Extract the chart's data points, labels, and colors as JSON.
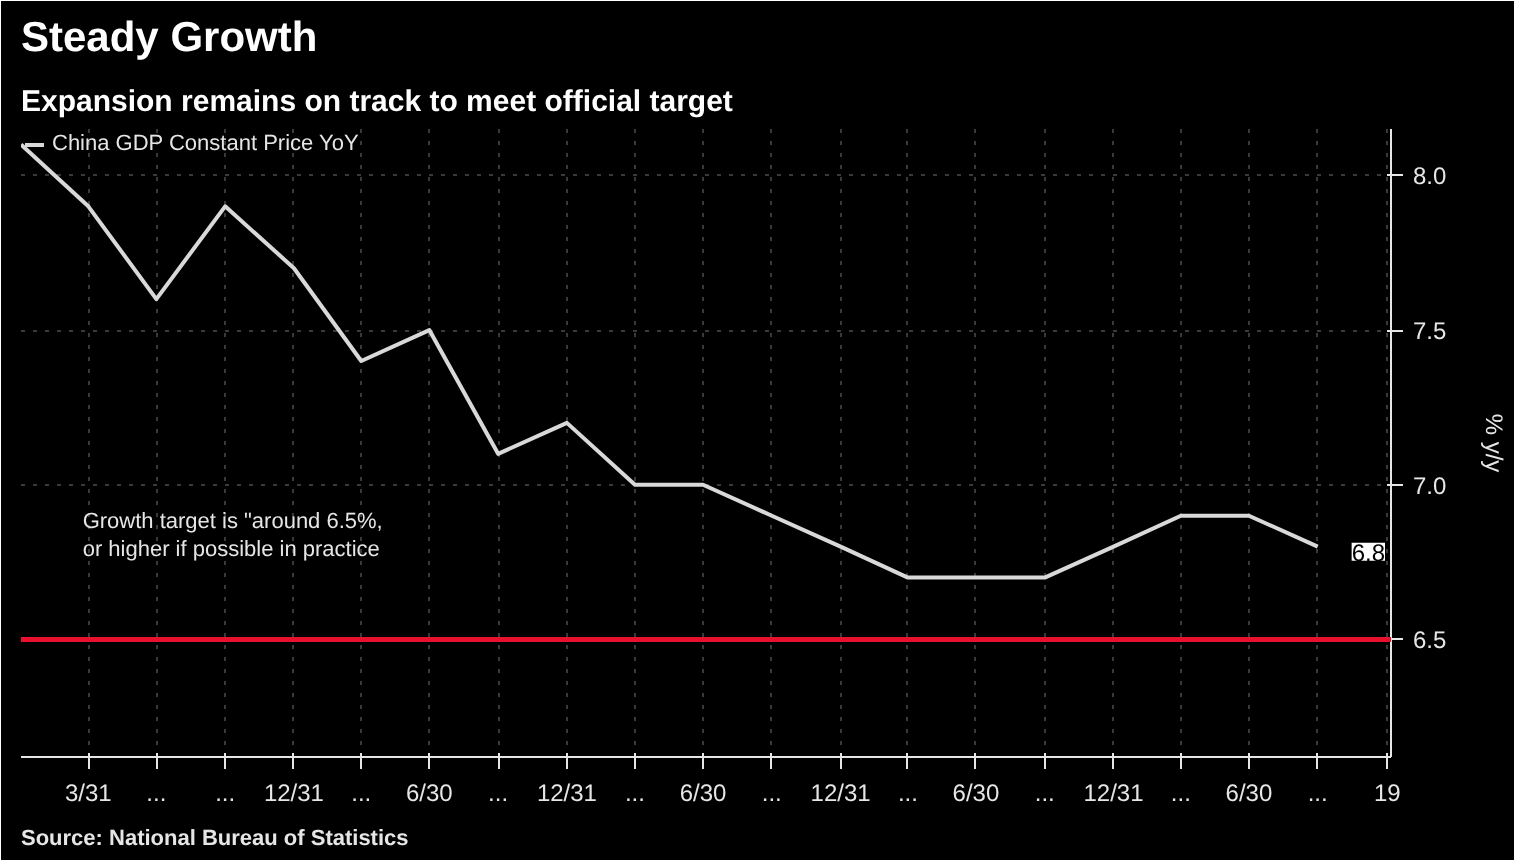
{
  "chart_data": {
    "type": "line",
    "title": "Steady Growth",
    "subtitle": "Expansion remains on track to meet official target",
    "ylabel": "% y/y",
    "x": [
      "2013-12-31",
      "2014-03-31",
      "2014-06-30",
      "2014-09-30",
      "2014-12-31",
      "2015-03-31",
      "2015-06-30",
      "2015-09-30",
      "2015-12-31",
      "2016-03-31",
      "2016-06-30",
      "2016-09-30",
      "2016-12-31",
      "2017-03-31",
      "2017-06-30",
      "2017-09-30",
      "2017-12-31",
      "2018-03-31",
      "2018-06-30",
      "2018-09-30"
    ],
    "series": [
      {
        "name": "China GDP Constant Price YoY",
        "color": "#d9d9d9",
        "values": [
          8.1,
          7.9,
          7.6,
          7.9,
          7.7,
          7.4,
          7.5,
          7.1,
          7.2,
          7.0,
          7.0,
          6.9,
          6.8,
          6.7,
          6.7,
          6.7,
          6.8,
          6.9,
          6.9,
          6.8
        ],
        "value_labels": [
          null,
          null,
          null,
          null,
          null,
          null,
          null,
          null,
          null,
          null,
          null,
          null,
          null,
          null,
          null,
          null,
          null,
          null,
          null,
          "6.8"
        ]
      }
    ],
    "xlim": [
      "2013-12-31",
      "2019-01-06"
    ],
    "ylim": [
      6.12,
      8.15
    ],
    "xticks": [
      {
        "value": "2014-03-31",
        "label": "3/31"
      },
      {
        "value": "2014-06-30",
        "label": "..."
      },
      {
        "value": "2014-09-30",
        "label": "..."
      },
      {
        "value": "2014-12-31",
        "label": "12/31"
      },
      {
        "value": "2015-03-31",
        "label": "..."
      },
      {
        "value": "2015-06-30",
        "label": "6/30"
      },
      {
        "value": "2015-09-30",
        "label": "..."
      },
      {
        "value": "2015-12-31",
        "label": "12/31"
      },
      {
        "value": "2016-03-31",
        "label": "..."
      },
      {
        "value": "2016-06-30",
        "label": "6/30"
      },
      {
        "value": "2016-09-30",
        "label": "..."
      },
      {
        "value": "2016-12-31",
        "label": "12/31"
      },
      {
        "value": "2017-03-31",
        "label": "..."
      },
      {
        "value": "2017-06-30",
        "label": "6/30"
      },
      {
        "value": "2017-09-30",
        "label": "..."
      },
      {
        "value": "2017-12-31",
        "label": "12/31"
      },
      {
        "value": "2018-03-31",
        "label": "..."
      },
      {
        "value": "2018-06-30",
        "label": "6/30"
      },
      {
        "value": "2018-09-30",
        "label": "..."
      },
      {
        "value": "2019-01-01",
        "label": "19"
      }
    ],
    "yticks": [
      {
        "value": 6.5,
        "label": "6.5"
      },
      {
        "value": 7.0,
        "label": "7.0"
      },
      {
        "value": 7.5,
        "label": "7.5"
      },
      {
        "value": 8.0,
        "label": "8.0"
      }
    ],
    "ref_lines": [
      {
        "axis": "y",
        "value": 6.5,
        "color": "#e8112d",
        "line_style": "solid"
      }
    ],
    "annotations": [
      "Growth target is \"around 6.5%,\nor higher if possible in practice",
      "Source: National Bureau of Statistics"
    ],
    "grid": true,
    "legend": "top left",
    "marker": "none",
    "line_style": "solid"
  }
}
